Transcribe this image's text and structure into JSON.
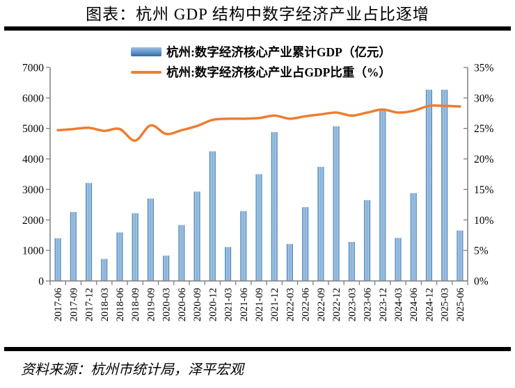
{
  "page": {
    "title": "图表：杭州 GDP 结构中数字经济产业占比逐增",
    "source": "资料来源：杭州市统计局，泽平宏观"
  },
  "legend": [
    {
      "swatch": "blue-gradient-bar",
      "label": "杭州:数字经济核心产业累计GDP（亿元）"
    },
    {
      "swatch": "orange-line",
      "label": "杭州:数字经济核心产业占GDP比重（%）"
    }
  ],
  "colors": {
    "bar_edge": "#2e6da4",
    "bar_light": "#a9c8e6",
    "bar_mid": "#85aed8",
    "line": "#ed7d31",
    "axis": "#7f7f7f",
    "text": "#000000"
  },
  "chart_data": {
    "type": "bar",
    "title": "图表：杭州 GDP 结构中数字经济产业占比逐增",
    "categories": [
      "2017-06",
      "2017-09",
      "2017-12",
      "2018-03",
      "2018-06",
      "2018-09",
      "2019-09",
      "2020-03",
      "2020-06",
      "2020-09",
      "2020-12",
      "2021-03",
      "2021-06",
      "2021-09",
      "2021-12",
      "2022-03",
      "2022-06",
      "2022-09",
      "2022-12",
      "2023-03",
      "2023-06",
      "2023-12",
      "2024-03",
      "2024-06",
      "2024-12",
      "2025-03",
      "2025-06"
    ],
    "series": [
      {
        "name": "杭州:数字经济核心产业累计GDP（亿元）",
        "type": "bar",
        "axis": "left",
        "values": [
          1400,
          2260,
          3210,
          720,
          1590,
          2220,
          2700,
          830,
          1830,
          2930,
          4250,
          1110,
          2290,
          3500,
          4880,
          1210,
          2420,
          3740,
          5070,
          1280,
          2650,
          5650,
          1410,
          2880,
          6270,
          6270,
          1650
        ]
      },
      {
        "name": "杭州:数字经济核心产业占GDP比重（%）",
        "type": "line",
        "axis": "right",
        "values": [
          24.7,
          24.9,
          25.1,
          24.6,
          24.9,
          23.0,
          25.5,
          24.1,
          24.7,
          25.4,
          26.4,
          26.6,
          26.6,
          26.7,
          27.1,
          26.6,
          27.0,
          27.3,
          27.6,
          27.1,
          27.6,
          28.1,
          27.6,
          27.9,
          28.7,
          28.7,
          28.6
        ]
      }
    ],
    "left_axis": {
      "min": 0,
      "max": 7000,
      "step": 1000,
      "tick_labels": [
        "0",
        "1000",
        "2000",
        "3000",
        "4000",
        "5000",
        "6000",
        "7000"
      ]
    },
    "right_axis": {
      "min": 0,
      "max": 35,
      "step": 5,
      "tick_labels": [
        "0%",
        "5%",
        "10%",
        "15%",
        "20%",
        "25%",
        "30%",
        "35%"
      ]
    },
    "legend_position": "top",
    "grid": false,
    "smooth_line": true
  }
}
